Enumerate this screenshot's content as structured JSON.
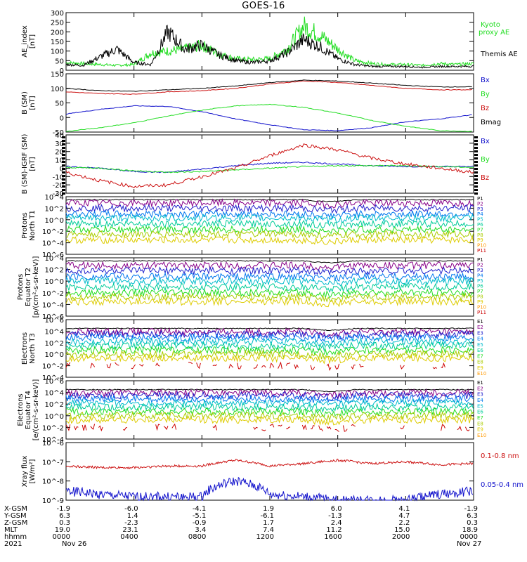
{
  "title": "GOES-16",
  "colors": {
    "black": "#000000",
    "green": "#22dd22",
    "blue": "#1111cc",
    "red": "#cc1111",
    "ch": [
      "#000000",
      "#880088",
      "#2222cc",
      "#0077ee",
      "#00bbcc",
      "#00cc99",
      "#22dd22",
      "#aacc00",
      "#ddcc00",
      "#ff9900",
      "#cc0000"
    ]
  },
  "panels": [
    {
      "id": "ae",
      "ylabel": [
        "AE_index",
        "[nT]"
      ],
      "ticks": [
        "300",
        "250",
        "200",
        "150",
        "100",
        "50",
        "0"
      ],
      "legend": [
        {
          "text": "Kyoto proxy AE",
          "color": "#22dd22"
        },
        {
          "text": "Themis AE",
          "color": "#000000"
        }
      ]
    },
    {
      "id": "bsm",
      "ylabel": [
        "B (SM)",
        "[nT]"
      ],
      "ticks": [
        "150",
        "100",
        "50",
        "0",
        "-50"
      ],
      "legend": [
        {
          "text": "Bx",
          "color": "#1111cc"
        },
        {
          "text": "By",
          "color": "#22dd22"
        },
        {
          "text": "Bz",
          "color": "#cc1111"
        },
        {
          "text": "Bmag",
          "color": "#000000"
        }
      ]
    },
    {
      "id": "bigrf",
      "ylabel": [
        "B (SM)-IGRF (SM)",
        "[nT]"
      ],
      "ticks": [
        "40",
        "30",
        "20",
        "10",
        "0",
        "-10",
        "-20",
        "-30"
      ],
      "legend": [
        {
          "text": "Bx",
          "color": "#1111cc"
        },
        {
          "text": "By",
          "color": "#22dd22"
        },
        {
          "text": "Bz",
          "color": "#cc1111"
        }
      ]
    },
    {
      "id": "pnorth",
      "ylabel": [
        "Protons",
        "North T1"
      ],
      "ticks": [
        "10^4",
        "10^2",
        "10^0",
        "10^-2",
        "10^-4",
        "10^-6"
      ],
      "channels": [
        "P1",
        "P2",
        "P3",
        "P4",
        "P5",
        "P6",
        "P7",
        "P8",
        "P9",
        "P10",
        "P11"
      ]
    },
    {
      "id": "peq",
      "ylabel": [
        "Protons",
        "Equator T2",
        "[p/(cm²-s-sr-keV)]"
      ],
      "ticks": [
        "10^4",
        "10^2",
        "10^0",
        "10^-2",
        "10^-4",
        "10^-6"
      ],
      "channels": [
        "P1",
        "P2",
        "P3",
        "P4",
        "P5",
        "P6",
        "P7",
        "P8",
        "P9",
        "P10",
        "P11"
      ]
    },
    {
      "id": "enorth",
      "ylabel": [
        "Electrons",
        "North T3"
      ],
      "ticks": [
        "10^6",
        "10^4",
        "10^2",
        "10^0",
        "10^-2",
        "10^-4"
      ],
      "channels": [
        "E1",
        "E2",
        "E3",
        "E4",
        "E5",
        "E6",
        "E7",
        "E8",
        "E9",
        "E10"
      ]
    },
    {
      "id": "eeq",
      "ylabel": [
        "Electrons",
        "Equator T4",
        "[e/(cm²-s-sr-keV)]"
      ],
      "ticks": [
        "10^6",
        "10^4",
        "10^2",
        "10^0",
        "10^-2",
        "10^-4"
      ],
      "channels": [
        "E1",
        "E2",
        "E3",
        "E4",
        "E5",
        "E6",
        "E7",
        "E8",
        "E9",
        "E10"
      ]
    },
    {
      "id": "xray",
      "ylabel": [
        "Xray flux",
        "[W/m²]"
      ],
      "ticks": [
        "10^-6",
        "10^-7",
        "10^-8",
        "10^-9"
      ],
      "legend": [
        {
          "text": "0.1-0.8 nm",
          "color": "#cc1111"
        },
        {
          "text": "0.05-0.4 nm",
          "color": "#1111cc"
        }
      ]
    }
  ],
  "footer": {
    "row_labels": [
      "X-GSM",
      "Y-GSM",
      "Z-GSM",
      "MLT",
      "hhmm",
      "2021"
    ],
    "columns": [
      [
        "-1.9",
        "6.3",
        "0.3",
        "19.0",
        "0000",
        "Nov 26"
      ],
      [
        "-6.0",
        "1.4",
        "-2.3",
        "23.1",
        "0400",
        ""
      ],
      [
        "-4.1",
        "-5.1",
        "-0.9",
        "3.4",
        "0800",
        ""
      ],
      [
        "1.9",
        "-6.1",
        "1.7",
        "7.4",
        "1200",
        ""
      ],
      [
        "6.0",
        "-1.3",
        "2.4",
        "11.2",
        "1600",
        ""
      ],
      [
        "4.1",
        "4.7",
        "2.2",
        "15.0",
        "2000",
        ""
      ],
      [
        "-1.9",
        "6.3",
        "0.3",
        "18.9",
        "0000",
        "Nov 27"
      ]
    ]
  },
  "chart_data": [
    {
      "type": "line",
      "title": "GOES-16",
      "ylabel": "AE_index [nT]",
      "ylim": [
        0,
        300
      ],
      "x_hours": [
        0,
        1,
        2,
        3,
        4,
        5,
        6,
        7,
        8,
        9,
        10,
        11,
        12,
        13,
        14,
        15,
        16,
        17,
        18,
        19,
        20,
        21,
        22,
        23,
        24
      ],
      "series": [
        {
          "name": "Kyoto proxy AE",
          "values": [
            40,
            35,
            30,
            25,
            30,
            90,
            100,
            110,
            130,
            85,
            60,
            55,
            60,
            110,
            230,
            180,
            110,
            50,
            35,
            30,
            30,
            25,
            35,
            30,
            35
          ]
        },
        {
          "name": "Themis AE",
          "values": [
            30,
            25,
            70,
            110,
            40,
            30,
            200,
            110,
            130,
            80,
            50,
            40,
            50,
            90,
            160,
            120,
            60,
            30,
            20,
            20,
            20,
            15,
            20,
            20,
            20
          ]
        }
      ]
    },
    {
      "type": "line",
      "ylabel": "B (SM) [nT]",
      "ylim": [
        -50,
        150
      ],
      "x_hours": [
        0,
        2,
        4,
        6,
        8,
        10,
        12,
        14,
        16,
        18,
        20,
        22,
        24
      ],
      "series": [
        {
          "name": "Bx",
          "values": [
            12,
            28,
            40,
            38,
            20,
            -5,
            -25,
            -42,
            -45,
            -35,
            -15,
            -5,
            10
          ]
        },
        {
          "name": "By",
          "values": [
            -48,
            -35,
            -18,
            5,
            25,
            40,
            45,
            35,
            15,
            -10,
            -30,
            -45,
            -48
          ]
        },
        {
          "name": "Bz",
          "values": [
            88,
            82,
            80,
            88,
            92,
            100,
            115,
            125,
            120,
            110,
            100,
            95,
            95
          ]
        },
        {
          "name": "Bmag",
          "values": [
            100,
            92,
            90,
            95,
            100,
            108,
            120,
            128,
            125,
            118,
            110,
            105,
            105
          ]
        }
      ]
    },
    {
      "type": "line",
      "ylabel": "B (SM)-IGRF (SM) [nT]",
      "ylim": [
        -30,
        40
      ],
      "x_hours": [
        0,
        2,
        4,
        6,
        8,
        10,
        12,
        14,
        16,
        18,
        20,
        22,
        24
      ],
      "series": [
        {
          "name": "Bx",
          "values": [
            2,
            0,
            -4,
            -5,
            -1,
            3,
            6,
            7,
            5,
            3,
            2,
            2,
            2
          ]
        },
        {
          "name": "By",
          "values": [
            1,
            0,
            -3,
            -5,
            -4,
            -2,
            0,
            2,
            3,
            3,
            3,
            2,
            1
          ]
        },
        {
          "name": "Bz",
          "values": [
            -5,
            -15,
            -22,
            -20,
            -10,
            0,
            15,
            28,
            22,
            12,
            5,
            0,
            -5
          ]
        }
      ]
    },
    {
      "type": "line",
      "ylabel": "Protons North T1",
      "yscale": "log",
      "ylim": [
        1e-06,
        10000.0
      ],
      "series": [
        {
          "name": "P1",
          "values": [
            3000
          ]
        },
        {
          "name": "P2",
          "values": [
            800
          ]
        },
        {
          "name": "P3",
          "values": [
            100
          ]
        },
        {
          "name": "P4",
          "values": [
            10
          ]
        },
        {
          "name": "P5",
          "values": [
            2
          ]
        },
        {
          "name": "P6",
          "values": [
            0.2
          ]
        },
        {
          "name": "P7",
          "values": [
            0.02
          ]
        },
        {
          "name": "P8",
          "values": [
            0.003
          ]
        },
        {
          "name": "P9",
          "values": [
            0.0003
          ]
        }
      ]
    },
    {
      "type": "line",
      "ylabel": "Protons Equator T2 [p/(cm²-s-sr-keV)]",
      "yscale": "log",
      "ylim": [
        1e-06,
        10000.0
      ],
      "series": [
        {
          "name": "P1",
          "values": [
            3000
          ]
        },
        {
          "name": "P2",
          "values": [
            500
          ]
        },
        {
          "name": "P3",
          "values": [
            60
          ]
        },
        {
          "name": "P4",
          "values": [
            6
          ]
        },
        {
          "name": "P5",
          "values": [
            1
          ]
        },
        {
          "name": "P6",
          "values": [
            0.1
          ]
        },
        {
          "name": "P7",
          "values": [
            0.01
          ]
        },
        {
          "name": "P8",
          "values": [
            0.002
          ]
        },
        {
          "name": "P9",
          "values": [
            0.0003
          ]
        }
      ]
    },
    {
      "type": "line",
      "ylabel": "Electrons North T3",
      "yscale": "log",
      "ylim": [
        0.0001,
        1000000.0
      ],
      "series": [
        {
          "name": "E1",
          "values": [
            30000
          ]
        },
        {
          "name": "E2",
          "values": [
            8000
          ]
        },
        {
          "name": "E3",
          "values": [
            3000
          ]
        },
        {
          "name": "E4",
          "values": [
            800
          ]
        },
        {
          "name": "E5",
          "values": [
            150
          ]
        },
        {
          "name": "E6",
          "values": [
            30
          ]
        },
        {
          "name": "E7",
          "values": [
            5
          ]
        },
        {
          "name": "E8",
          "values": [
            1
          ]
        },
        {
          "name": "E9",
          "values": [
            0.2
          ]
        },
        {
          "name": "E10",
          "values": [
            0.01
          ]
        }
      ]
    },
    {
      "type": "line",
      "ylabel": "Electrons Equator T4 [e/(cm²-s-sr-keV)]",
      "yscale": "log",
      "ylim": [
        0.0001,
        1000000.0
      ],
      "series": [
        {
          "name": "E1",
          "values": [
            30000
          ]
        },
        {
          "name": "E2",
          "values": [
            8000
          ]
        },
        {
          "name": "E3",
          "values": [
            3000
          ]
        },
        {
          "name": "E4",
          "values": [
            800
          ]
        },
        {
          "name": "E5",
          "values": [
            150
          ]
        },
        {
          "name": "E6",
          "values": [
            30
          ]
        },
        {
          "name": "E7",
          "values": [
            5
          ]
        },
        {
          "name": "E8",
          "values": [
            1
          ]
        },
        {
          "name": "E9",
          "values": [
            0.2
          ]
        },
        {
          "name": "E10",
          "values": [
            0.01
          ]
        }
      ]
    },
    {
      "type": "line",
      "ylabel": "Xray flux [W/m²]",
      "yscale": "log",
      "ylim": [
        1e-09,
        1e-06
      ],
      "x_hours": [
        0,
        2,
        4,
        6,
        8,
        10,
        12,
        14,
        16,
        18,
        20,
        22,
        24
      ],
      "series": [
        {
          "name": "0.1-0.8 nm",
          "values": [
            6e-08,
            5e-08,
            5e-08,
            6e-08,
            6e-08,
            1.2e-07,
            6e-08,
            8e-08,
            1.2e-07,
            8e-08,
            1e-07,
            7e-08,
            8e-08
          ]
        },
        {
          "name": "0.05-0.4 nm",
          "values": [
            3e-09,
            2e-09,
            1.5e-09,
            1.5e-09,
            1.5e-09,
            1e-08,
            2e-09,
            1.5e-09,
            1e-09,
            1e-09,
            1e-09,
            2e-09,
            3e-09
          ]
        }
      ]
    }
  ]
}
